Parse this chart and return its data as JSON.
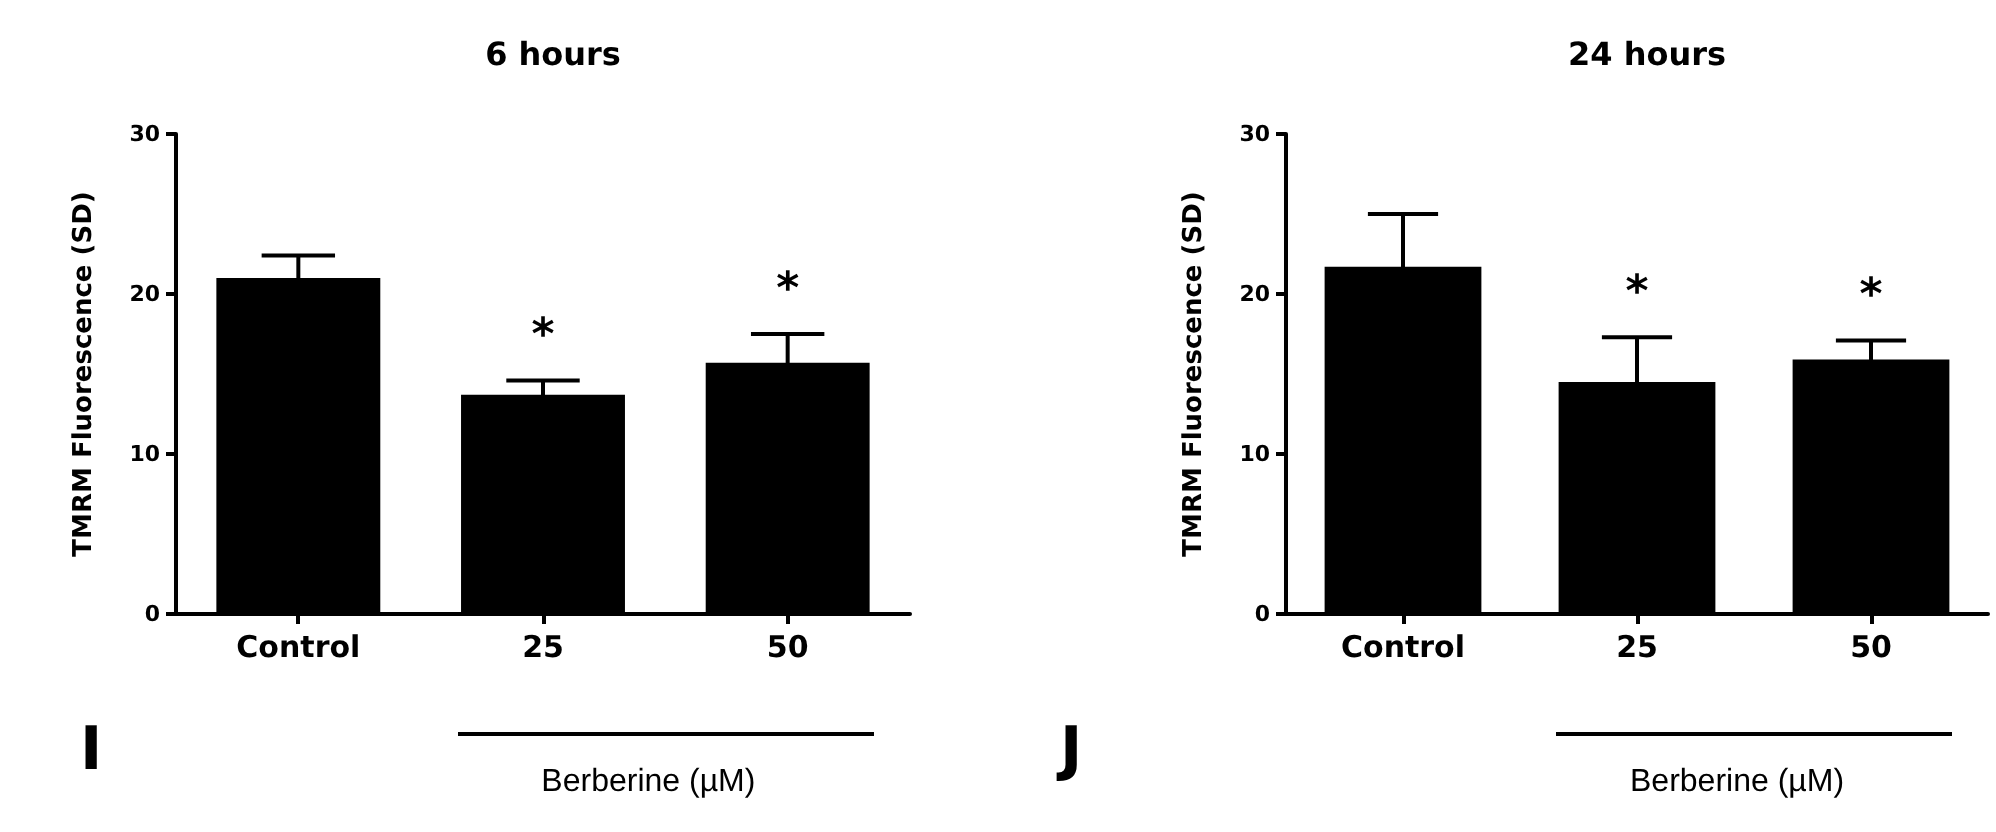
{
  "chart_data": [
    {
      "type": "bar",
      "title": "6 hours",
      "ylabel": "TMRM Fluorescence (SD)",
      "xlabel": "Berberine (µM)",
      "categories": [
        "Control",
        "25",
        "50"
      ],
      "values": [
        21,
        13.7,
        15.7
      ],
      "errors": [
        1.4,
        0.9,
        1.8
      ],
      "color": "#000000",
      "ylim": [
        0,
        30
      ],
      "yticks": [
        0,
        10,
        20,
        30
      ],
      "grid": false,
      "annotations": [
        {
          "text": "*",
          "x": "25",
          "y": 13.7
        },
        {
          "text": "*",
          "x": "50",
          "y": 15.7
        },
        "I"
      ]
    },
    {
      "type": "bar",
      "title": "24 hours",
      "ylabel": "TMRM Fluorescence (SD)",
      "xlabel": "Berberine (µM)",
      "categories": [
        "Control",
        "25",
        "50"
      ],
      "values": [
        21.7,
        14.5,
        15.9
      ],
      "errors": [
        3.3,
        2.8,
        1.2
      ],
      "color": "#000000",
      "ylim": [
        0,
        30
      ],
      "yticks": [
        0,
        10,
        20,
        30
      ],
      "grid": false,
      "annotations": [
        {
          "text": "*",
          "x": "25",
          "y": 14.5
        },
        {
          "text": "*",
          "x": "50",
          "y": 15.9
        },
        "J"
      ]
    }
  ]
}
